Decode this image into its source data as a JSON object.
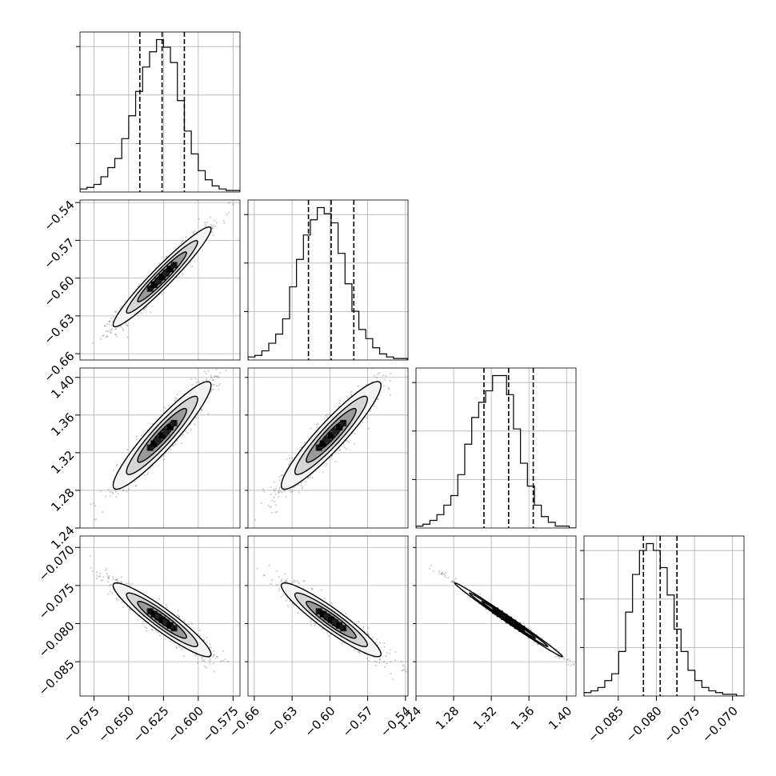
{
  "chart_data": {
    "type": "corner",
    "grid": true,
    "parameters": [
      {
        "range": [
          -0.685,
          -0.57
        ],
        "ticks": [
          -0.675,
          -0.65,
          -0.625,
          -0.6,
          -0.575
        ],
        "tick_labels": [
          "−0.675",
          "−0.650",
          "−0.625",
          "−0.600",
          "−0.575"
        ],
        "quantiles": [
          -0.642,
          -0.626,
          -0.61
        ],
        "hist_step": 0.005,
        "hist_counts": [
          2,
          3,
          5,
          10,
          16,
          22,
          35,
          50,
          66,
          82,
          92,
          100,
          95,
          85,
          60,
          40,
          25,
          14,
          8,
          4,
          2,
          1,
          1
        ]
      },
      {
        "range": [
          -0.665,
          -0.538
        ],
        "ticks": [
          -0.66,
          -0.63,
          -0.6,
          -0.57,
          -0.54
        ],
        "tick_labels": [
          "−0.66",
          "−0.63",
          "−0.60",
          "−0.57",
          "−0.54"
        ],
        "quantiles": [
          -0.617,
          -0.599,
          -0.581
        ],
        "hist_step": 0.0055,
        "hist_counts": [
          2,
          3,
          6,
          11,
          17,
          27,
          48,
          66,
          82,
          92,
          100,
          96,
          90,
          70,
          50,
          32,
          20,
          14,
          8,
          4,
          2,
          1,
          1
        ]
      },
      {
        "range": [
          1.24,
          1.41
        ],
        "ticks": [
          1.24,
          1.28,
          1.32,
          1.36,
          1.4
        ],
        "tick_labels": [
          "1.24",
          "1.28",
          "1.32",
          "1.36",
          "1.40"
        ],
        "quantiles": [
          1.3122,
          1.3384,
          1.3646
        ],
        "hist_step": 0.0074,
        "hist_counts": [
          1,
          2,
          4,
          7,
          12,
          17,
          28,
          44,
          58,
          66,
          72,
          80,
          80,
          70,
          52,
          34,
          22,
          12,
          6,
          3,
          1,
          1,
          0
        ]
      },
      {
        "range": [
          -0.0895,
          -0.0685
        ],
        "ticks": [
          -0.085,
          -0.08,
          -0.075,
          -0.07
        ],
        "tick_labels": [
          "−0.085",
          "−0.080",
          "−0.075",
          "−0.070"
        ],
        "quantiles": [
          -0.0817,
          -0.0795,
          -0.0773
        ],
        "hist_step": 0.00091,
        "hist_counts": [
          2,
          3,
          5,
          9,
          13,
          26,
          49,
          71,
          85,
          89,
          85,
          75,
          59,
          39,
          26,
          15,
          9,
          5,
          3,
          2,
          1,
          1,
          0
        ]
      }
    ],
    "pairs": [
      {
        "row": 1,
        "col": 0,
        "mean": [
          -0.626,
          -0.599
        ],
        "sd": [
          0.016,
          0.018
        ],
        "corr": 0.96
      },
      {
        "row": 2,
        "col": 0,
        "mean": [
          -0.626,
          1.3384
        ],
        "sd": [
          0.016,
          0.026
        ],
        "corr": 0.93
      },
      {
        "row": 2,
        "col": 1,
        "mean": [
          -0.599,
          1.3384
        ],
        "sd": [
          0.018,
          0.026
        ],
        "corr": 0.93
      },
      {
        "row": 3,
        "col": 0,
        "mean": [
          -0.626,
          -0.0795
        ],
        "sd": [
          0.016,
          0.0022
        ],
        "corr": -0.93
      },
      {
        "row": 3,
        "col": 1,
        "mean": [
          -0.599,
          -0.0795
        ],
        "sd": [
          0.018,
          0.0022
        ],
        "corr": -0.93
      },
      {
        "row": 3,
        "col": 2,
        "mean": [
          1.3384,
          -0.0795
        ],
        "sd": [
          0.026,
          0.0022
        ],
        "corr": -0.995
      }
    ]
  }
}
